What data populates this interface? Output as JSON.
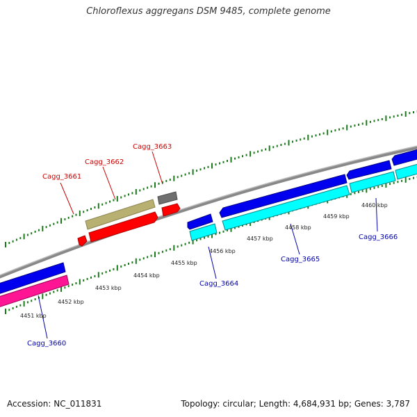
{
  "title": "Chloroflexus aggregans DSM 9485, complete genome",
  "footer": {
    "accession": "Accession: NC_011831",
    "summary": "Topology: circular; Length: 4,684,931 bp; Genes: 3,787"
  },
  "colors": {
    "backbone": "#888888",
    "tick": "#1a7a1a",
    "label_top": "#cc0000",
    "label_bottom": "#0000aa"
  },
  "genes_top": [
    {
      "id": "Cagg_3661",
      "label": "Cagg_3661"
    },
    {
      "id": "Cagg_3662",
      "label": "Cagg_3662"
    },
    {
      "id": "Cagg_3663",
      "label": "Cagg_3663"
    }
  ],
  "genes_bottom": [
    {
      "id": "Cagg_3660",
      "label": "Cagg_3660"
    },
    {
      "id": "Cagg_3664",
      "label": "Cagg_3664"
    },
    {
      "id": "Cagg_3665",
      "label": "Cagg_3665"
    },
    {
      "id": "Cagg_3666",
      "label": "Cagg_3666"
    }
  ],
  "kbp_marks": [
    "4451 kbp",
    "4452 kbp",
    "4453 kbp",
    "4454 kbp",
    "4455 kbp",
    "4456 kbp",
    "4457 kbp",
    "4458 kbp",
    "4459 kbp",
    "4460 kbp"
  ]
}
